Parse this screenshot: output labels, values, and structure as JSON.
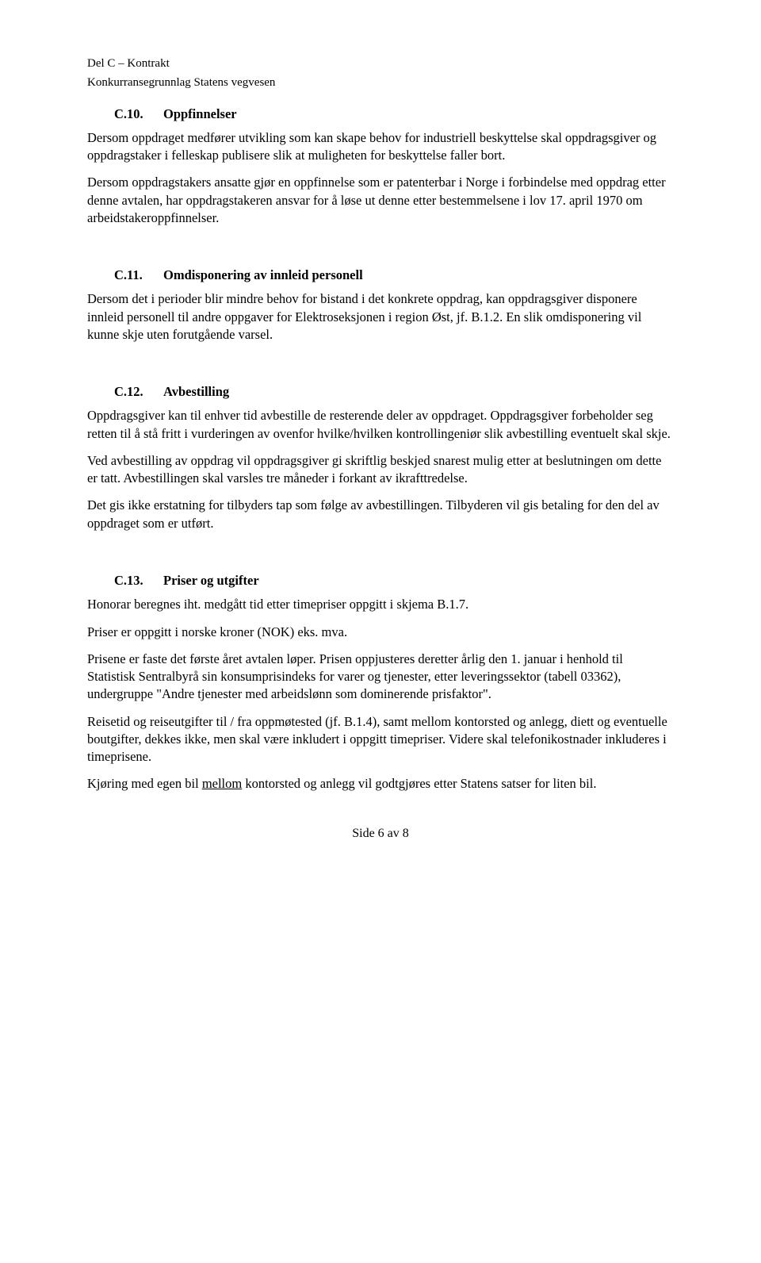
{
  "header": {
    "line1": "Del C – Kontrakt",
    "line2": "Konkurransegrunnlag Statens vegvesen"
  },
  "sections": {
    "c10": {
      "num": "C.10.",
      "title": "Oppfinnelser",
      "p1": "Dersom oppdraget medfører utvikling som kan skape behov for industriell beskyttelse skal oppdragsgiver og oppdragstaker i felleskap publisere slik at muligheten for beskyttelse faller bort.",
      "p2": "Dersom oppdragstakers ansatte gjør en oppfinnelse som er patenterbar i Norge i forbindelse med oppdrag etter denne avtalen, har oppdragstakeren ansvar for å løse ut denne etter bestemmelsene i lov 17. april 1970 om arbeidstakeroppfinnelser."
    },
    "c11": {
      "num": "C.11.",
      "title": "Omdisponering av innleid personell",
      "p1": "Dersom det i perioder blir mindre behov for bistand i det konkrete oppdrag, kan oppdragsgiver disponere innleid personell til andre oppgaver for Elektroseksjonen i region Øst, jf. B.1.2. En slik omdisponering vil kunne skje uten forutgående varsel."
    },
    "c12": {
      "num": "C.12.",
      "title": "Avbestilling",
      "p1": "Oppdragsgiver kan til enhver tid avbestille de resterende deler av oppdraget. Oppdragsgiver forbeholder seg retten til å stå fritt i vurderingen av ovenfor hvilke/hvilken kontrollingeniør slik avbestilling eventuelt skal skje.",
      "p2": "Ved avbestilling av oppdrag vil oppdragsgiver gi skriftlig beskjed snarest mulig etter at beslutningen om dette er tatt. Avbestillingen skal varsles tre måneder i forkant av ikrafttredelse.",
      "p3": "Det gis ikke erstatning for tilbyders tap som følge av avbestillingen. Tilbyderen vil gis betaling for den del av oppdraget som er utført."
    },
    "c13": {
      "num": "C.13.",
      "title": "Priser og utgifter",
      "p1": "Honorar beregnes iht. medgått tid etter timepriser oppgitt i skjema B.1.7.",
      "p2": "Priser er oppgitt i norske kroner (NOK) eks. mva.",
      "p3": "Prisene er faste det første året avtalen løper. Prisen oppjusteres deretter årlig den 1. januar i henhold til Statistisk Sentralbyrå sin konsumprisindeks for varer og tjenester, etter leveringssektor (tabell 03362), undergruppe \"Andre tjenester med arbeidslønn som dominerende prisfaktor\".",
      "p4": "Reisetid og reiseutgifter til / fra oppmøtested (jf. B.1.4), samt mellom kontorsted og anlegg, diett og eventuelle boutgifter, dekkes ikke, men skal være inkludert i oppgitt timepriser. Videre skal telefonikostnader inkluderes i timeprisene.",
      "p5_before": "Kjøring med egen bil ",
      "p5_underlined": "mellom",
      "p5_after": " kontorsted og anlegg vil godtgjøres etter Statens satser for liten bil."
    }
  },
  "footer": {
    "text": "Side 6 av 8"
  }
}
